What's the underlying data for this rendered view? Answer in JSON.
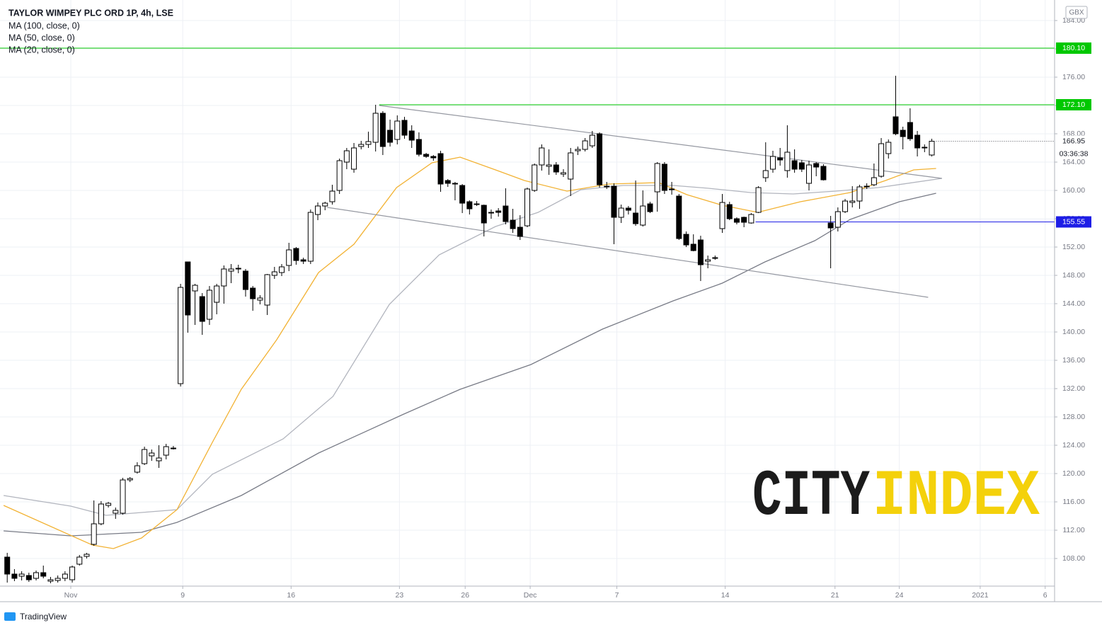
{
  "chart_data": {
    "type": "candlestick",
    "title": "TAYLOR WIMPEY PLC ORD 1P, 4h, LSE",
    "currency": "GBX",
    "x": [
      0,
      1,
      2,
      3,
      4,
      5,
      6,
      7,
      8,
      9,
      10,
      11,
      12,
      13,
      14,
      15,
      16,
      17,
      18,
      19,
      20,
      21,
      22,
      23,
      24,
      25,
      26,
      27,
      28,
      29,
      30,
      31,
      32,
      33,
      34,
      35,
      36,
      37,
      38,
      39,
      40,
      41,
      42,
      43,
      44,
      45,
      46,
      47,
      48,
      49,
      50,
      51,
      52,
      53,
      54,
      55,
      56,
      57,
      58,
      59,
      60,
      61,
      62,
      63,
      64,
      65,
      66,
      67,
      68,
      69,
      70,
      71,
      72,
      73,
      74,
      75,
      76,
      77,
      78,
      79,
      80,
      81,
      82,
      83,
      84,
      85,
      86,
      87,
      88,
      89,
      90,
      91,
      92,
      93,
      94,
      95,
      96,
      97,
      98,
      99,
      100,
      101,
      102,
      103,
      104,
      105,
      106,
      107,
      108,
      109,
      110,
      111,
      112,
      113,
      114,
      115,
      116,
      117,
      118,
      119,
      120,
      121,
      122,
      123,
      124,
      125,
      126,
      127,
      128
    ],
    "open": [
      108.2,
      105.8,
      105.5,
      105.6,
      105.2,
      106.0,
      104.8,
      104.9,
      105.2,
      105.0,
      107.2,
      108.3,
      110.0,
      112.9,
      115.5,
      114.4,
      114.4,
      119.1,
      120.2,
      121.4,
      122.5,
      121.8,
      122.6,
      123.6,
      132.7,
      149.9,
      145.8,
      145.0,
      141.8,
      144.2,
      146.5,
      148.6,
      149.0,
      148.6,
      146.2,
      144.5,
      143.8,
      148.0,
      148.4,
      149.4,
      151.8,
      150.2,
      150.0,
      156.6,
      157.8,
      158.4,
      160.0,
      164.0,
      163.0,
      166.2,
      166.5,
      166.8,
      170.9,
      168.5,
      167.2,
      169.9,
      168.4,
      167.2,
      165.1,
      164.8,
      165.2,
      161.4,
      161.0,
      160.7,
      158.4,
      158.1,
      157.9,
      156.8,
      157.1,
      157.8,
      155.8,
      154.8,
      155.0,
      160.0,
      163.6,
      163.4,
      163.6,
      162.3,
      161.6,
      165.6,
      165.8,
      166.3,
      168.0,
      160.6,
      160.6,
      156.2,
      157.5,
      156.8,
      155.1,
      158.1,
      159.8,
      163.7,
      160.2,
      159.2,
      153.8,
      152.4,
      153.0,
      150.0,
      150.5,
      154.6,
      158.0,
      156.0,
      156.2,
      155.4,
      156.9,
      161.8,
      163.0,
      164.6,
      162.8,
      164.2,
      163.9,
      161.0,
      163.8,
      163.4,
      155.4,
      154.8,
      157.0,
      158.3,
      158.5,
      160.6,
      160.8,
      162.0,
      165.2,
      170.4,
      168.5,
      169.6,
      167.8,
      166.0,
      165.0
    ],
    "high": [
      108.8,
      106.5,
      106.2,
      106.0,
      106.3,
      107.0,
      105.4,
      105.6,
      106.2,
      107.0,
      108.5,
      108.8,
      116.2,
      116.1,
      116.0,
      115.2,
      119.4,
      119.5,
      121.6,
      123.8,
      123.4,
      124.0,
      124.2,
      123.9,
      146.8,
      149.9,
      146.8,
      145.5,
      146.5,
      146.8,
      149.4,
      149.6,
      149.5,
      148.9,
      146.5,
      145.2,
      148.2,
      149.2,
      149.6,
      152.6,
      152.0,
      150.5,
      157.3,
      158.3,
      158.4,
      160.8,
      164.5,
      166.0,
      166.7,
      167.0,
      168.3,
      172.1,
      171.2,
      170.0,
      170.6,
      170.4,
      169.2,
      168.2,
      165.3,
      165.0,
      165.6,
      161.6,
      161.2,
      160.9,
      158.6,
      158.5,
      158.0,
      157.3,
      157.5,
      160.3,
      157.4,
      156.5,
      160.4,
      163.8,
      166.5,
      165.8,
      164.0,
      163.0,
      166.0,
      166.2,
      167.4,
      168.4,
      168.2,
      161.2,
      161.0,
      158.0,
      157.8,
      161.4,
      160.0,
      158.4,
      164.0,
      164.0,
      161.2,
      159.5,
      154.2,
      153.8,
      153.6,
      150.8,
      150.8,
      159.5,
      158.4,
      156.2,
      156.3,
      156.8,
      160.6,
      166.8,
      165.6,
      166.0,
      169.2,
      165.8,
      164.3,
      164.2,
      164.0,
      163.7,
      156.4,
      157.6,
      158.8,
      160.6,
      160.8,
      161.0,
      163.8,
      167.4,
      167.2,
      176.2,
      169.0,
      171.6,
      168.4,
      166.5,
      167.3
    ],
    "low": [
      104.6,
      104.8,
      104.9,
      104.7,
      104.9,
      105.2,
      104.5,
      104.6,
      104.8,
      104.6,
      107.0,
      108.0,
      109.8,
      112.7,
      115.2,
      113.6,
      114.2,
      118.8,
      120.0,
      121.2,
      121.8,
      120.8,
      122.0,
      123.4,
      132.3,
      139.9,
      141.0,
      139.6,
      141.0,
      142.5,
      144.0,
      146.9,
      148.3,
      145.0,
      143.0,
      143.9,
      142.4,
      147.5,
      147.9,
      148.6,
      149.5,
      149.6,
      149.6,
      155.8,
      157.2,
      158.0,
      159.5,
      163.0,
      162.5,
      165.8,
      166.0,
      165.5,
      165.0,
      166.2,
      166.5,
      167.3,
      166.0,
      164.8,
      164.6,
      164.2,
      159.8,
      160.5,
      158.6,
      156.8,
      156.6,
      157.8,
      153.5,
      156.0,
      156.3,
      155.2,
      154.0,
      153.0,
      154.8,
      159.8,
      162.8,
      162.2,
      162.2,
      161.9,
      159.2,
      165.0,
      165.5,
      166.0,
      160.4,
      160.2,
      152.4,
      155.4,
      156.6,
      155.0,
      154.9,
      156.8,
      157.0,
      159.5,
      159.4,
      153.0,
      152.0,
      151.4,
      147.2,
      149.0,
      150.2,
      154.0,
      155.8,
      155.2,
      154.8,
      155.3,
      156.8,
      161.2,
      162.5,
      163.5,
      161.8,
      162.5,
      162.6,
      160.0,
      162.0,
      161.4,
      149.0,
      154.2,
      156.8,
      157.6,
      157.4,
      160.2,
      160.6,
      161.8,
      164.5,
      167.8,
      165.8,
      167.0,
      164.8,
      165.4,
      164.8
    ],
    "close": [
      105.8,
      105.2,
      105.8,
      105.0,
      106.0,
      105.5,
      105.0,
      105.2,
      105.8,
      106.8,
      108.2,
      108.6,
      112.9,
      115.7,
      115.8,
      114.8,
      119.1,
      119.3,
      121.1,
      123.4,
      122.9,
      122.2,
      123.8,
      123.6,
      146.3,
      142.4,
      146.6,
      141.5,
      145.9,
      146.5,
      148.9,
      148.9,
      148.9,
      146.0,
      144.7,
      144.8,
      148.1,
      148.5,
      149.2,
      151.6,
      150.1,
      150.0,
      156.9,
      157.8,
      158.2,
      159.9,
      164.2,
      165.6,
      166.0,
      166.5,
      166.9,
      170.9,
      166.2,
      166.8,
      169.8,
      167.8,
      167.1,
      165.1,
      164.8,
      164.6,
      160.9,
      161.0,
      160.9,
      158.2,
      157.4,
      158.0,
      155.4,
      156.9,
      156.9,
      155.6,
      154.6,
      153.5,
      160.2,
      163.6,
      166.0,
      163.6,
      162.6,
      162.5,
      165.3,
      165.8,
      167.0,
      167.8,
      160.8,
      160.5,
      156.2,
      157.5,
      157.2,
      155.3,
      157.8,
      157.0,
      163.8,
      160.0,
      160.1,
      153.2,
      152.3,
      151.5,
      149.5,
      150.2,
      150.5,
      158.3,
      156.0,
      155.5,
      155.5,
      156.6,
      160.4,
      162.8,
      164.8,
      164.3,
      165.4,
      163.0,
      163.0,
      163.6,
      163.3,
      161.5,
      154.7,
      157.0,
      158.5,
      158.5,
      160.5,
      160.5,
      161.8,
      166.6,
      166.8,
      168.0,
      167.6,
      167.3,
      166.0,
      166.1,
      166.95
    ],
    "up_color": "#ffffff",
    "down_color": "#000000",
    "wick_color": "#000000",
    "ma_series": [
      {
        "name": "MA (100, close, 0)",
        "color": "#787b86",
        "x": [
          -0.5,
          8.8,
          18.6,
          23.5,
          32.4,
          43.1,
          54.9,
          62.7,
          72.5,
          82.4,
          92.2,
          99.0,
          104.9,
          111.8,
          116.7,
          123.5,
          128.6
        ],
        "values": [
          111.9,
          111.2,
          111.7,
          113.1,
          116.9,
          122.9,
          128.4,
          131.9,
          135.4,
          140.4,
          144.4,
          146.9,
          149.9,
          152.9,
          155.9,
          158.4,
          159.6
        ]
      },
      {
        "name": "MA (50, close, 0)",
        "color": "#b2b5be",
        "x": [
          -0.5,
          8.8,
          13.7,
          23.5,
          28.4,
          38.2,
          45.1,
          52.9,
          59.8,
          67.6,
          73.5,
          79.4,
          85.3,
          92.2,
          97.1,
          102.9,
          108.8,
          114.7,
          120.6,
          129.4
        ],
        "values": [
          116.9,
          115.4,
          114.1,
          114.9,
          119.9,
          124.9,
          130.9,
          143.9,
          150.9,
          154.9,
          156.9,
          160.1,
          160.7,
          160.7,
          160.3,
          159.7,
          159.5,
          159.9,
          160.4,
          161.7
        ]
      },
      {
        "name": "MA (20, close, 0)",
        "color": "#f2b233",
        "x": [
          -0.5,
          11.8,
          14.7,
          18.6,
          23.5,
          28.4,
          32.4,
          37.3,
          43.1,
          48.0,
          53.9,
          58.8,
          62.7,
          67.6,
          71.6,
          77.5,
          83.3,
          90.2,
          94.1,
          99.0,
          103.9,
          109.8,
          116.7,
          121.6,
          125.5,
          128.6
        ],
        "values": [
          115.5,
          109.9,
          109.4,
          110.9,
          114.9,
          124.4,
          131.9,
          138.9,
          148.4,
          152.4,
          160.4,
          163.9,
          164.7,
          162.9,
          161.4,
          159.9,
          160.9,
          161.1,
          159.4,
          157.9,
          156.9,
          158.4,
          159.7,
          161.4,
          162.9,
          163.1
        ]
      }
    ],
    "trendlines": [
      {
        "color": "#9598a1",
        "x": [
          51.5,
          129.4
        ],
        "values": [
          172.0,
          161.7
        ]
      },
      {
        "color": "#9598a1",
        "x": [
          44.3,
          127.5
        ],
        "values": [
          157.6,
          144.9
        ]
      }
    ],
    "levels": [
      {
        "value": 180.1,
        "label": "180.10",
        "color": "#00c800",
        "x_start": -1
      },
      {
        "value": 172.1,
        "label": "172.10",
        "color": "#00c800",
        "x_start": 51.5
      },
      {
        "value": 155.55,
        "label": "155.55",
        "color": "#1e1ee6",
        "x_start": 103.6
      }
    ],
    "current_price": {
      "value": 166.95,
      "label": "166.95",
      "countdown": "03:36:38"
    },
    "xlim": [
      -1,
      145
    ],
    "ylim": [
      104.1,
      186.9
    ],
    "xticks": [
      {
        "value": 8.8,
        "label": "Nov"
      },
      {
        "value": 24.3,
        "label": "9"
      },
      {
        "value": 39.3,
        "label": "16"
      },
      {
        "value": 54.3,
        "label": "23"
      },
      {
        "value": 63.4,
        "label": "26"
      },
      {
        "value": 72.4,
        "label": "Dec"
      },
      {
        "value": 84.4,
        "label": "7"
      },
      {
        "value": 99.4,
        "label": "14"
      },
      {
        "value": 114.6,
        "label": "21"
      },
      {
        "value": 123.5,
        "label": "24"
      },
      {
        "value": 134.7,
        "label": "2021"
      },
      {
        "value": 143.7,
        "label": "6"
      }
    ],
    "yticks": [
      {
        "value": 108,
        "label": "108.00"
      },
      {
        "value": 112,
        "label": "112.00"
      },
      {
        "value": 116,
        "label": "116.00"
      },
      {
        "value": 120,
        "label": "120.00"
      },
      {
        "value": 124,
        "label": "124.00"
      },
      {
        "value": 128,
        "label": "128.00"
      },
      {
        "value": 132,
        "label": "132.00"
      },
      {
        "value": 136,
        "label": "136.00"
      },
      {
        "value": 140,
        "label": "140.00"
      },
      {
        "value": 144,
        "label": "144.00"
      },
      {
        "value": 148,
        "label": "148.00"
      },
      {
        "value": 152,
        "label": "152.00"
      },
      {
        "value": 156,
        "label": "156.00"
      },
      {
        "value": 160,
        "label": "160.00"
      },
      {
        "value": 164,
        "label": "164.00"
      },
      {
        "value": 168,
        "label": "168.00"
      },
      {
        "value": 172,
        "label": "172.00"
      },
      {
        "value": 176,
        "label": "176.00"
      },
      {
        "value": 180,
        "label": "180.00"
      },
      {
        "value": 184,
        "label": "184.00"
      }
    ],
    "grid": true,
    "watermark": [
      "CITY",
      "INDEX"
    ],
    "footer": "TradingView"
  }
}
